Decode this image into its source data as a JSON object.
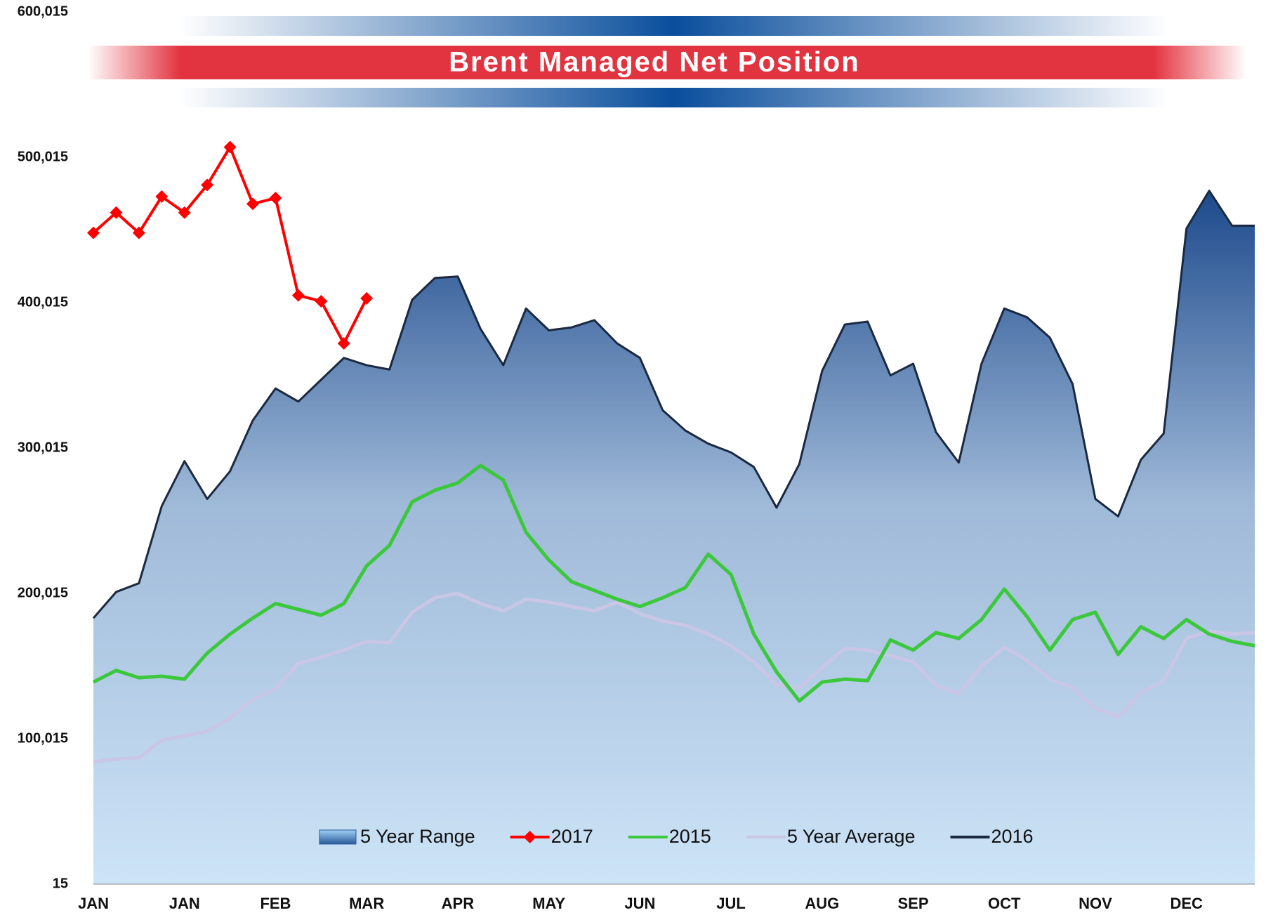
{
  "chart_data": {
    "type": "line",
    "title": "Brent Managed Net Position",
    "categories": [
      "JAN",
      null,
      null,
      null,
      "JAN",
      null,
      null,
      null,
      "FEB",
      null,
      null,
      null,
      "MAR",
      null,
      null,
      null,
      "APR",
      null,
      null,
      null,
      "MAY",
      null,
      null,
      null,
      "JUN",
      null,
      null,
      null,
      "JUL",
      null,
      null,
      null,
      "AUG",
      null,
      null,
      null,
      "SEP",
      null,
      null,
      null,
      "OCT",
      null,
      null,
      null,
      "NOV",
      null,
      null,
      null,
      "DEC",
      null,
      null,
      null
    ],
    "ylim": [
      15,
      600015
    ],
    "yticks": [
      15,
      {
        "value": 100015,
        "label": "100,015"
      },
      {
        "value": 200015,
        "label": "200,015"
      },
      {
        "value": 300015,
        "label": "300,015"
      },
      {
        "value": 400015,
        "label": "400,015"
      },
      {
        "value": 500015,
        "label": "500,015"
      },
      {
        "value": 600015,
        "label": "600,015"
      }
    ],
    "legend": "bottom",
    "series": [
      {
        "name": "5 Year Range",
        "type": "area",
        "color": "#2a5a9a",
        "values": [
          183000,
          201000,
          207000,
          260000,
          291000,
          265000,
          284000,
          319000,
          341000,
          332000,
          347000,
          362000,
          357000,
          354000,
          402000,
          417000,
          418000,
          382000,
          357000,
          396000,
          381000,
          383000,
          388000,
          372000,
          362000,
          326000,
          312000,
          303000,
          297000,
          287000,
          259000,
          289000,
          353000,
          385000,
          387000,
          350000,
          358000,
          311000,
          290000,
          358000,
          396000,
          390000,
          376000,
          344000,
          265000,
          253000,
          292000,
          310000,
          451000,
          477000,
          453000,
          453000
        ]
      },
      {
        "name": "2017",
        "type": "line",
        "marker": "diamond",
        "color": "#ff0000",
        "values": [
          448000,
          462000,
          448000,
          473000,
          462000,
          481000,
          507000,
          468000,
          472000,
          405000,
          401000,
          372000,
          403000,
          null,
          null,
          null,
          null,
          null,
          null,
          null,
          null,
          null,
          null,
          null,
          null,
          null,
          null,
          null,
          null,
          null,
          null,
          null,
          null,
          null,
          null,
          null,
          null,
          null,
          null,
          null,
          null,
          null,
          null,
          null,
          null,
          null,
          null,
          null,
          null,
          null,
          null,
          null
        ]
      },
      {
        "name": "2015",
        "type": "line",
        "color": "#3cc83c",
        "values": [
          139000,
          147000,
          142000,
          143000,
          141000,
          159000,
          172000,
          183000,
          193000,
          189000,
          185000,
          193000,
          219000,
          233000,
          263000,
          271000,
          276000,
          288000,
          278000,
          242000,
          223000,
          208000,
          202000,
          196000,
          191000,
          197000,
          204000,
          227000,
          213000,
          172000,
          146000,
          126000,
          139000,
          141000,
          140000,
          168000,
          161000,
          173000,
          169000,
          182000,
          203000,
          184000,
          161000,
          182000,
          187000,
          158000,
          177000,
          169000,
          182000,
          172000,
          167000,
          164000
        ]
      },
      {
        "name": "5 Year Average",
        "type": "line",
        "color": "#c9c6e6",
        "values": [
          84000,
          86000,
          87000,
          99000,
          102000,
          105000,
          114000,
          127000,
          134000,
          152000,
          156000,
          161000,
          167000,
          166000,
          187000,
          197000,
          200000,
          193000,
          188000,
          196000,
          194000,
          191000,
          188000,
          194000,
          186000,
          181000,
          178000,
          172000,
          164000,
          153000,
          137000,
          135000,
          149000,
          162000,
          161000,
          157000,
          153000,
          137000,
          131000,
          150000,
          163000,
          154000,
          141000,
          135000,
          121000,
          115000,
          132000,
          140000,
          169000,
          174000,
          172000,
          173000
        ]
      },
      {
        "name": "2016",
        "type": "line",
        "color": "#1b2940",
        "values": [
          183000,
          201000,
          207000,
          260000,
          291000,
          265000,
          284000,
          319000,
          341000,
          332000,
          347000,
          362000,
          357000,
          354000,
          402000,
          417000,
          418000,
          382000,
          357000,
          396000,
          381000,
          383000,
          388000,
          372000,
          362000,
          326000,
          312000,
          303000,
          297000,
          287000,
          259000,
          289000,
          353000,
          385000,
          387000,
          350000,
          358000,
          311000,
          290000,
          358000,
          396000,
          390000,
          376000,
          344000,
          265000,
          253000,
          292000,
          310000,
          451000,
          477000,
          453000,
          453000
        ]
      }
    ]
  }
}
